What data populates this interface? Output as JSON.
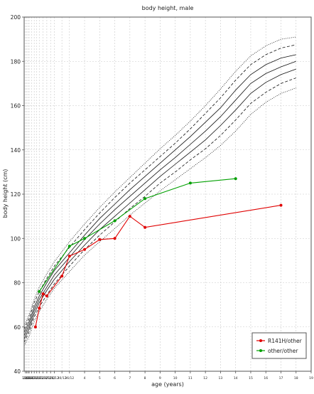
{
  "chart_data": {
    "type": "line",
    "title": "body height, male",
    "xlabel": "age (years)",
    "ylabel": "body height (cm)",
    "xlim": [
      0,
      19
    ],
    "ylim": [
      40,
      200
    ],
    "grid": true,
    "legend_position": "bottom-right",
    "y_ticks": [
      40,
      60,
      80,
      100,
      120,
      140,
      160,
      180,
      200
    ],
    "x_ticks": [
      {
        "x": 0.0833,
        "label": "1/12"
      },
      {
        "x": 0.1667,
        "label": "2/12"
      },
      {
        "x": 0.25,
        "label": "3/12"
      },
      {
        "x": 0.3333,
        "label": "4/12"
      },
      {
        "x": 0.5,
        "label": "6/12"
      },
      {
        "x": 0.6667,
        "label": "8/12"
      },
      {
        "x": 0.8333,
        "label": "10/12"
      },
      {
        "x": 1.0,
        "label": "12/12"
      },
      {
        "x": 1.25,
        "label": "15/12"
      },
      {
        "x": 1.5,
        "label": "18/12"
      },
      {
        "x": 1.75,
        "label": "21/12"
      },
      {
        "x": 2.0,
        "label": "24/12"
      },
      {
        "x": 2.5,
        "label": "30/12"
      },
      {
        "x": 3.0,
        "label": "36/12"
      },
      {
        "x": 4,
        "label": "4"
      },
      {
        "x": 5,
        "label": "5"
      },
      {
        "x": 6,
        "label": "6"
      },
      {
        "x": 7,
        "label": "7"
      },
      {
        "x": 8,
        "label": "8"
      },
      {
        "x": 9,
        "label": "9"
      },
      {
        "x": 10,
        "label": "10"
      },
      {
        "x": 11,
        "label": "11"
      },
      {
        "x": 12,
        "label": "12"
      },
      {
        "x": 13,
        "label": "13"
      },
      {
        "x": 14,
        "label": "14"
      },
      {
        "x": 15,
        "label": "15"
      },
      {
        "x": 16,
        "label": "16"
      },
      {
        "x": 17,
        "label": "17"
      },
      {
        "x": 18,
        "label": "18"
      },
      {
        "x": 19,
        "label": "19"
      }
    ],
    "reference_curves": [
      {
        "style": "dotted",
        "points": [
          [
            0,
            51.5
          ],
          [
            0.3333,
            56
          ],
          [
            0.6667,
            62.5
          ],
          [
            1,
            67
          ],
          [
            1.5,
            72.5
          ],
          [
            2,
            77.5
          ],
          [
            3,
            85
          ],
          [
            4,
            92.5
          ],
          [
            5,
            98.5
          ],
          [
            6,
            104.5
          ],
          [
            7,
            110.5
          ],
          [
            8,
            116
          ],
          [
            9,
            121.5
          ],
          [
            10,
            126.5
          ],
          [
            11,
            131.5
          ],
          [
            12,
            136.5
          ],
          [
            13,
            142
          ],
          [
            14,
            148.5
          ],
          [
            15,
            156
          ],
          [
            16,
            161.5
          ],
          [
            17,
            165.5
          ],
          [
            18,
            168
          ]
        ]
      },
      {
        "style": "dashed",
        "points": [
          [
            0,
            53
          ],
          [
            0.3333,
            58
          ],
          [
            0.6667,
            64.5
          ],
          [
            1,
            69
          ],
          [
            1.5,
            74.5
          ],
          [
            2,
            79.5
          ],
          [
            3,
            87.5
          ],
          [
            4,
            95
          ],
          [
            5,
            101.5
          ],
          [
            6,
            107.5
          ],
          [
            7,
            113.5
          ],
          [
            8,
            119
          ],
          [
            9,
            125
          ],
          [
            10,
            130
          ],
          [
            11,
            135.5
          ],
          [
            12,
            140.5
          ],
          [
            13,
            146.5
          ],
          [
            14,
            153.5
          ],
          [
            15,
            161
          ],
          [
            16,
            166
          ],
          [
            17,
            170
          ],
          [
            18,
            172.5
          ]
        ]
      },
      {
        "style": "solid",
        "points": [
          [
            0,
            54.5
          ],
          [
            0.3333,
            59.5
          ],
          [
            0.6667,
            66
          ],
          [
            1,
            71
          ],
          [
            1.5,
            76.5
          ],
          [
            2,
            81.5
          ],
          [
            3,
            89.5
          ],
          [
            4,
            97
          ],
          [
            5,
            104
          ],
          [
            6,
            110
          ],
          [
            7,
            116
          ],
          [
            8,
            122
          ],
          [
            9,
            128
          ],
          [
            10,
            133.5
          ],
          [
            11,
            139
          ],
          [
            12,
            144.5
          ],
          [
            13,
            151
          ],
          [
            14,
            158
          ],
          [
            15,
            165.5
          ],
          [
            16,
            170.5
          ],
          [
            17,
            174
          ],
          [
            18,
            176.5
          ]
        ]
      },
      {
        "style": "solid",
        "points": [
          [
            0,
            56
          ],
          [
            0.3333,
            61
          ],
          [
            0.6667,
            67.5
          ],
          [
            1,
            72.5
          ],
          [
            1.5,
            78
          ],
          [
            2,
            83.5
          ],
          [
            3,
            91.5
          ],
          [
            4,
            99.5
          ],
          [
            5,
            106.5
          ],
          [
            6,
            113
          ],
          [
            7,
            119
          ],
          [
            8,
            125
          ],
          [
            9,
            131
          ],
          [
            10,
            136.5
          ],
          [
            11,
            142.5
          ],
          [
            12,
            148.5
          ],
          [
            13,
            155
          ],
          [
            14,
            162.5
          ],
          [
            15,
            170
          ],
          [
            16,
            174.5
          ],
          [
            17,
            177.5
          ],
          [
            18,
            180
          ]
        ]
      },
      {
        "style": "solid",
        "points": [
          [
            0,
            57.5
          ],
          [
            0.3333,
            62.5
          ],
          [
            0.6667,
            69
          ],
          [
            1,
            74
          ],
          [
            1.5,
            80
          ],
          [
            2,
            85.5
          ],
          [
            3,
            93.5
          ],
          [
            4,
            101.5
          ],
          [
            5,
            109
          ],
          [
            6,
            115.5
          ],
          [
            7,
            122
          ],
          [
            8,
            128
          ],
          [
            9,
            134
          ],
          [
            10,
            140
          ],
          [
            11,
            146
          ],
          [
            12,
            152.5
          ],
          [
            13,
            159
          ],
          [
            14,
            167
          ],
          [
            15,
            174
          ],
          [
            16,
            178.5
          ],
          [
            17,
            181.5
          ],
          [
            18,
            183
          ]
        ]
      },
      {
        "style": "dashed",
        "points": [
          [
            0,
            59
          ],
          [
            0.3333,
            64
          ],
          [
            0.6667,
            71
          ],
          [
            1,
            76
          ],
          [
            1.5,
            82
          ],
          [
            2,
            87.5
          ],
          [
            3,
            96
          ],
          [
            4,
            104
          ],
          [
            5,
            111.5
          ],
          [
            6,
            118.5
          ],
          [
            7,
            125
          ],
          [
            8,
            131
          ],
          [
            9,
            137
          ],
          [
            10,
            143
          ],
          [
            11,
            149.5
          ],
          [
            12,
            156.5
          ],
          [
            13,
            163.5
          ],
          [
            14,
            171.5
          ],
          [
            15,
            178.5
          ],
          [
            16,
            183
          ],
          [
            17,
            186
          ],
          [
            18,
            187.5
          ]
        ]
      },
      {
        "style": "dotted",
        "points": [
          [
            0,
            60.5
          ],
          [
            0.3333,
            65.5
          ],
          [
            0.6667,
            72.5
          ],
          [
            1,
            78
          ],
          [
            1.5,
            84
          ],
          [
            2,
            89.5
          ],
          [
            3,
            98.5
          ],
          [
            4,
            106.5
          ],
          [
            5,
            114
          ],
          [
            6,
            121
          ],
          [
            7,
            127.5
          ],
          [
            8,
            134
          ],
          [
            9,
            140.5
          ],
          [
            10,
            146.5
          ],
          [
            11,
            153
          ],
          [
            12,
            160
          ],
          [
            13,
            167.5
          ],
          [
            14,
            175.5
          ],
          [
            15,
            182.5
          ],
          [
            16,
            187
          ],
          [
            17,
            190
          ],
          [
            18,
            191
          ]
        ]
      }
    ],
    "series": [
      {
        "name": "R141H/other",
        "color": "#e00000",
        "points": [
          [
            0.75,
            60
          ],
          [
            1.0,
            68.5
          ],
          [
            1.25,
            75
          ],
          [
            1.5,
            74
          ],
          [
            2.5,
            83
          ],
          [
            3.0,
            92
          ],
          [
            4,
            95
          ],
          [
            5,
            99.5
          ],
          [
            6,
            100
          ],
          [
            7,
            110
          ],
          [
            8,
            105
          ],
          [
            17,
            115
          ]
        ]
      },
      {
        "name": "other/other",
        "color": "#00a000",
        "points": [
          [
            1.0,
            76
          ],
          [
            3.0,
            96.5
          ],
          [
            4,
            100
          ],
          [
            6,
            108
          ],
          [
            8,
            118
          ],
          [
            11,
            125
          ],
          [
            14,
            127
          ]
        ]
      }
    ]
  }
}
